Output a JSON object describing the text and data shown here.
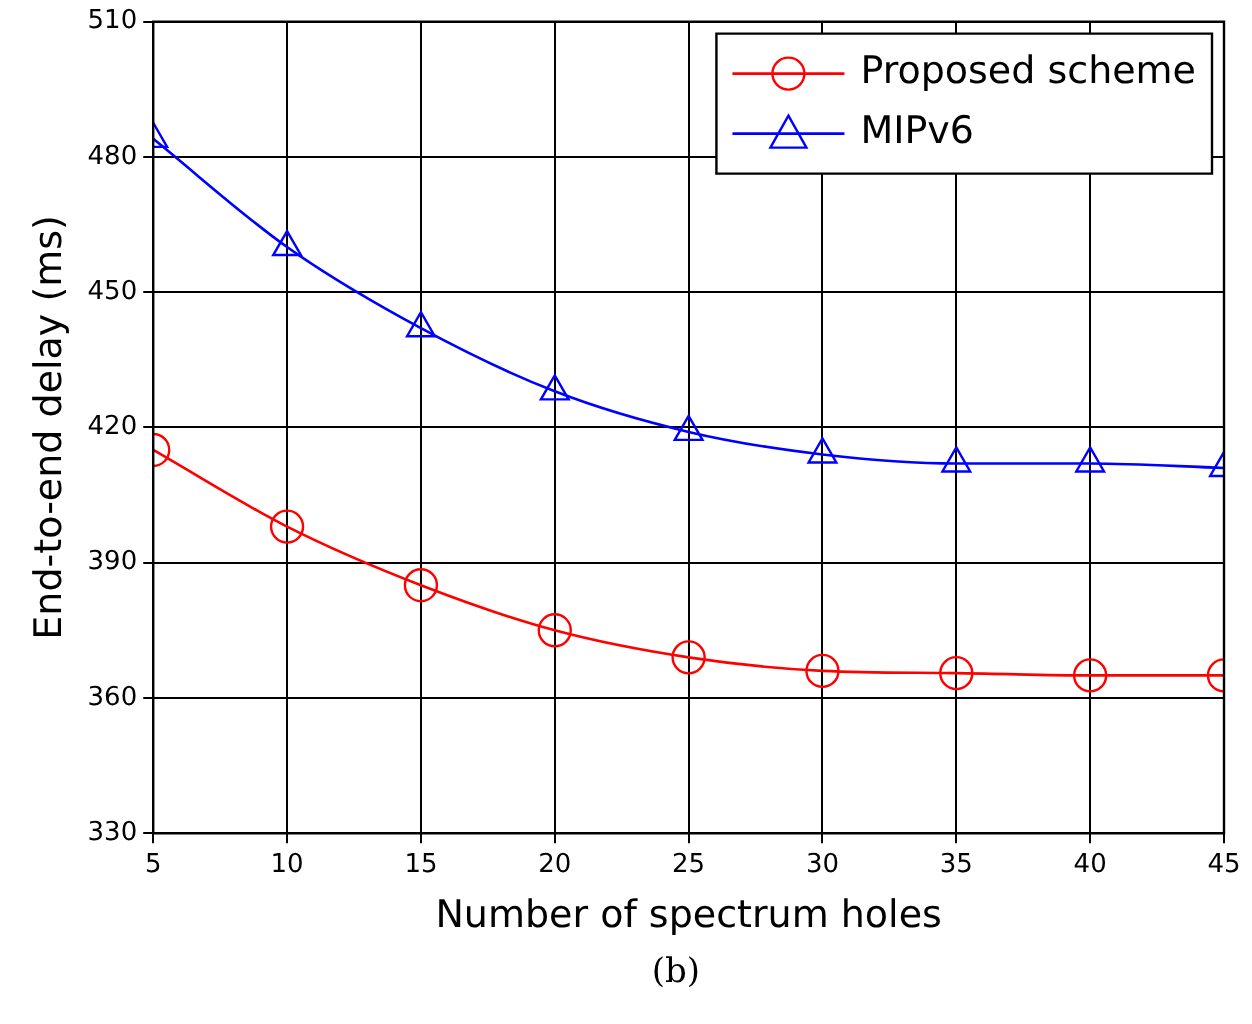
{
  "chart_data": {
    "type": "line",
    "xlabel": "Number of spectrum holes",
    "ylabel": "End-to-end delay (ms)",
    "annotations": [
      "(b)"
    ],
    "x": [
      5,
      10,
      15,
      20,
      25,
      30,
      35,
      40,
      45
    ],
    "series": [
      {
        "name": "Proposed scheme",
        "color": "#ff0000",
        "marker": "circle",
        "values": [
          415,
          398,
          385,
          375,
          369,
          366,
          365.5,
          365,
          365
        ]
      },
      {
        "name": "MIPv6",
        "color": "#0000ff",
        "marker": "triangle",
        "values": [
          484,
          460,
          442,
          428,
          419,
          414,
          412,
          412,
          411
        ]
      }
    ],
    "xlim": [
      5,
      45
    ],
    "xticks": [
      5,
      10,
      15,
      20,
      25,
      30,
      35,
      40,
      45
    ],
    "ylim": [
      330,
      510
    ],
    "yticks": [
      330,
      360,
      390,
      420,
      450,
      480,
      510
    ],
    "grid": true,
    "legend": "top right",
    "line_style": "solid"
  }
}
